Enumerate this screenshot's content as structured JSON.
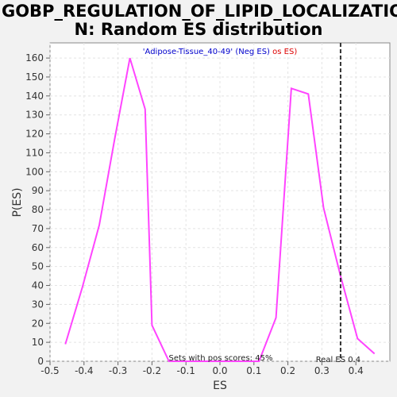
{
  "chart_data": {
    "type": "line",
    "title_line1": "GOBP_REGULATION_OF_LIPID_LOCALIZATIO",
    "title_line2": "N: Random ES distribution",
    "xlabel": "ES",
    "ylabel": "P(ES)",
    "xlim": [
      -0.5,
      0.5
    ],
    "ylim": [
      0,
      168
    ],
    "x_ticks": [
      -0.5,
      -0.4,
      -0.3,
      -0.2,
      -0.1,
      0.0,
      0.1,
      0.2,
      0.3,
      0.4
    ],
    "x_tick_labels": [
      "-0.5",
      "-0.4",
      "-0.3",
      "-0.2",
      "-0.1",
      "0.0",
      "0.1",
      "0.2",
      "0.3",
      "0.4"
    ],
    "y_ticks": [
      0,
      10,
      20,
      30,
      40,
      50,
      60,
      70,
      80,
      90,
      100,
      110,
      120,
      130,
      140,
      150,
      160
    ],
    "y_tick_labels": [
      "0",
      "10",
      "20",
      "30",
      "40",
      "50",
      "60",
      "70",
      "80",
      "90",
      "100",
      "110",
      "120",
      "130",
      "140",
      "150",
      "160"
    ],
    "grid": true,
    "series": [
      {
        "color": "#ff44ff",
        "points": [
          [
            -0.455,
            9
          ],
          [
            -0.405,
            39
          ],
          [
            -0.355,
            72
          ],
          [
            -0.31,
            117
          ],
          [
            -0.265,
            160
          ],
          [
            -0.22,
            133
          ],
          [
            -0.2,
            19
          ],
          [
            -0.15,
            0
          ],
          [
            0.115,
            0
          ],
          [
            0.165,
            23
          ],
          [
            0.21,
            144
          ],
          [
            0.26,
            141
          ],
          [
            0.305,
            81
          ],
          [
            0.355,
            45
          ],
          [
            0.405,
            12
          ],
          [
            0.455,
            4
          ]
        ]
      }
    ],
    "legend": {
      "text_blue": "'Adipose-Tissue_40-49' (Neg ES)",
      "text_red": "os ES)",
      "blue_color": "#0000cc",
      "red_color": "#dd0000",
      "placement": "top-center"
    },
    "real_es": {
      "value": 0.355,
      "label": "Real ES 0.4"
    },
    "pos_scores_text": "Sets with pos scores: 45%"
  }
}
